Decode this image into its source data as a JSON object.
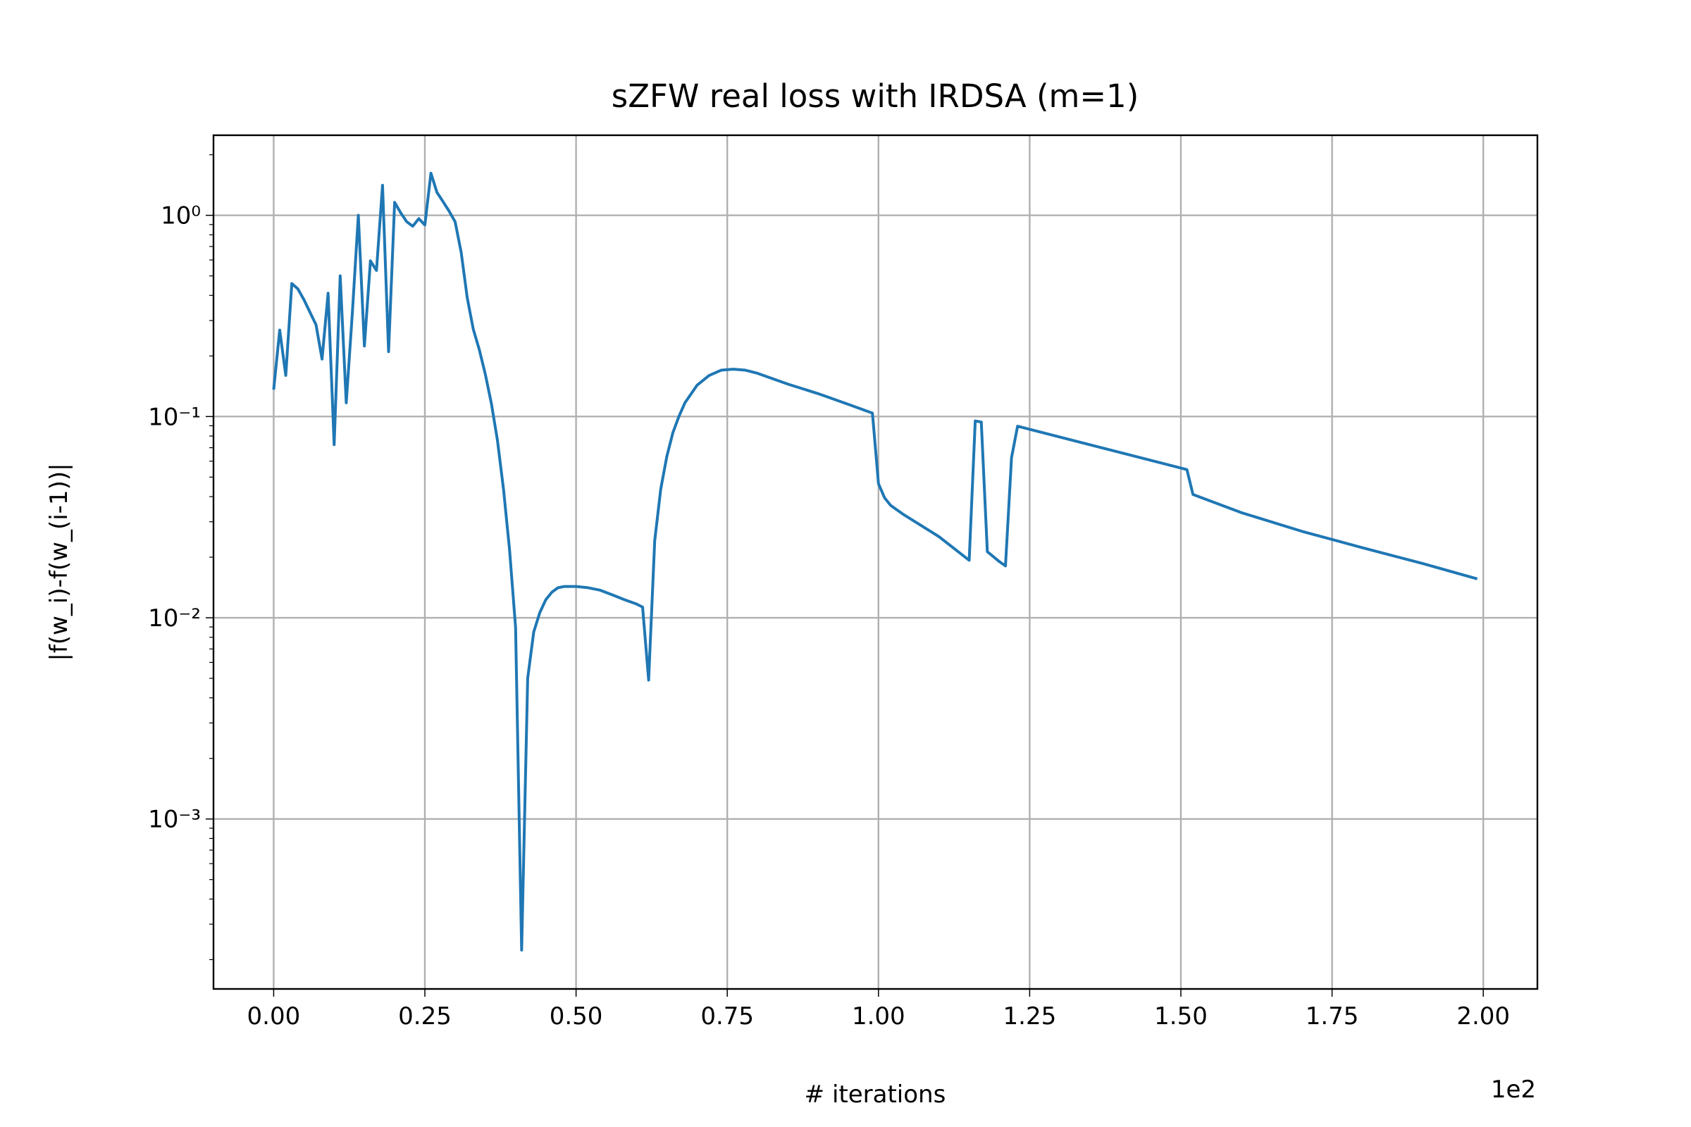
{
  "chart_data": {
    "type": "line",
    "title": "sZFW real loss with IRDSA (m=1)",
    "xlabel": "# iterations",
    "ylabel": "|f(w_i)-f(w_(i-1))|",
    "x_offset_label": "1e2",
    "yscale": "log",
    "grid": true,
    "x": [
      0,
      1,
      2,
      3,
      4,
      5,
      6,
      7,
      8,
      9,
      10,
      11,
      12,
      13,
      14,
      15,
      16,
      17,
      18,
      19,
      20,
      21,
      22,
      23,
      24,
      25,
      26,
      27,
      28,
      29,
      30,
      31,
      32,
      33,
      34,
      35,
      36,
      37,
      38,
      39,
      40,
      41,
      42,
      43,
      44,
      45,
      46,
      47,
      48,
      50,
      52,
      54,
      56,
      58,
      60,
      61,
      62,
      63,
      64,
      65,
      66,
      67,
      68,
      70,
      72,
      74,
      76,
      78,
      80,
      85,
      90,
      95,
      99,
      100,
      101,
      102,
      104,
      110,
      115,
      116,
      117,
      118,
      120,
      121,
      122,
      123,
      151,
      152,
      160,
      170,
      180,
      190,
      199
    ],
    "series": [
      {
        "name": "sZFW",
        "color": "#1f77b4",
        "values": [
          0.136,
          0.269,
          0.16,
          0.458,
          0.431,
          0.381,
          0.33,
          0.286,
          0.193,
          0.41,
          0.0725,
          0.5,
          0.117,
          0.324,
          1.0,
          0.224,
          0.594,
          0.532,
          1.41,
          0.21,
          1.16,
          1.03,
          0.929,
          0.883,
          0.963,
          0.895,
          1.62,
          1.3,
          1.17,
          1.05,
          0.929,
          0.656,
          0.39,
          0.272,
          0.215,
          0.162,
          0.116,
          0.0762,
          0.0436,
          0.0218,
          0.00895,
          0.000223,
          0.005,
          0.0085,
          0.0106,
          0.0123,
          0.0134,
          0.0141,
          0.0143,
          0.0143,
          0.0141,
          0.0137,
          0.013,
          0.0123,
          0.0117,
          0.0113,
          0.0049,
          0.0241,
          0.0436,
          0.0632,
          0.083,
          0.1,
          0.117,
          0.143,
          0.16,
          0.17,
          0.172,
          0.17,
          0.164,
          0.145,
          0.13,
          0.115,
          0.104,
          0.0464,
          0.0395,
          0.0362,
          0.0328,
          0.0253,
          0.0193,
          0.0951,
          0.0939,
          0.0213,
          0.019,
          0.0181,
          0.0625,
          0.0895,
          0.0545,
          0.041,
          0.0333,
          0.0269,
          0.0223,
          0.0186,
          0.0156
        ]
      }
    ],
    "xlim": [
      -9.95,
      208.95
    ],
    "ylim": [
      0.000143,
      2.5
    ],
    "xticks": [
      {
        "value": 0,
        "label": "0.00"
      },
      {
        "value": 25,
        "label": "0.25"
      },
      {
        "value": 50,
        "label": "0.50"
      },
      {
        "value": 75,
        "label": "0.75"
      },
      {
        "value": 100,
        "label": "1.00"
      },
      {
        "value": 125,
        "label": "1.25"
      },
      {
        "value": 150,
        "label": "1.50"
      },
      {
        "value": 175,
        "label": "1.75"
      },
      {
        "value": 200,
        "label": "2.00"
      }
    ],
    "yticks": [
      {
        "value": 0.001,
        "label": "10⁻³"
      },
      {
        "value": 0.01,
        "label": "10⁻²"
      },
      {
        "value": 0.1,
        "label": "10⁻¹"
      },
      {
        "value": 1,
        "label": "10⁰"
      }
    ],
    "yminorticks": [
      0.0002,
      0.0003,
      0.0004,
      0.0005,
      0.0006,
      0.0007,
      0.0008,
      0.0009,
      0.002,
      0.003,
      0.004,
      0.005,
      0.006,
      0.007,
      0.008,
      0.009,
      0.02,
      0.03,
      0.04,
      0.05,
      0.06,
      0.07,
      0.08,
      0.09,
      0.2,
      0.3,
      0.4,
      0.5,
      0.6,
      0.7,
      0.8,
      0.9,
      2
    ]
  }
}
